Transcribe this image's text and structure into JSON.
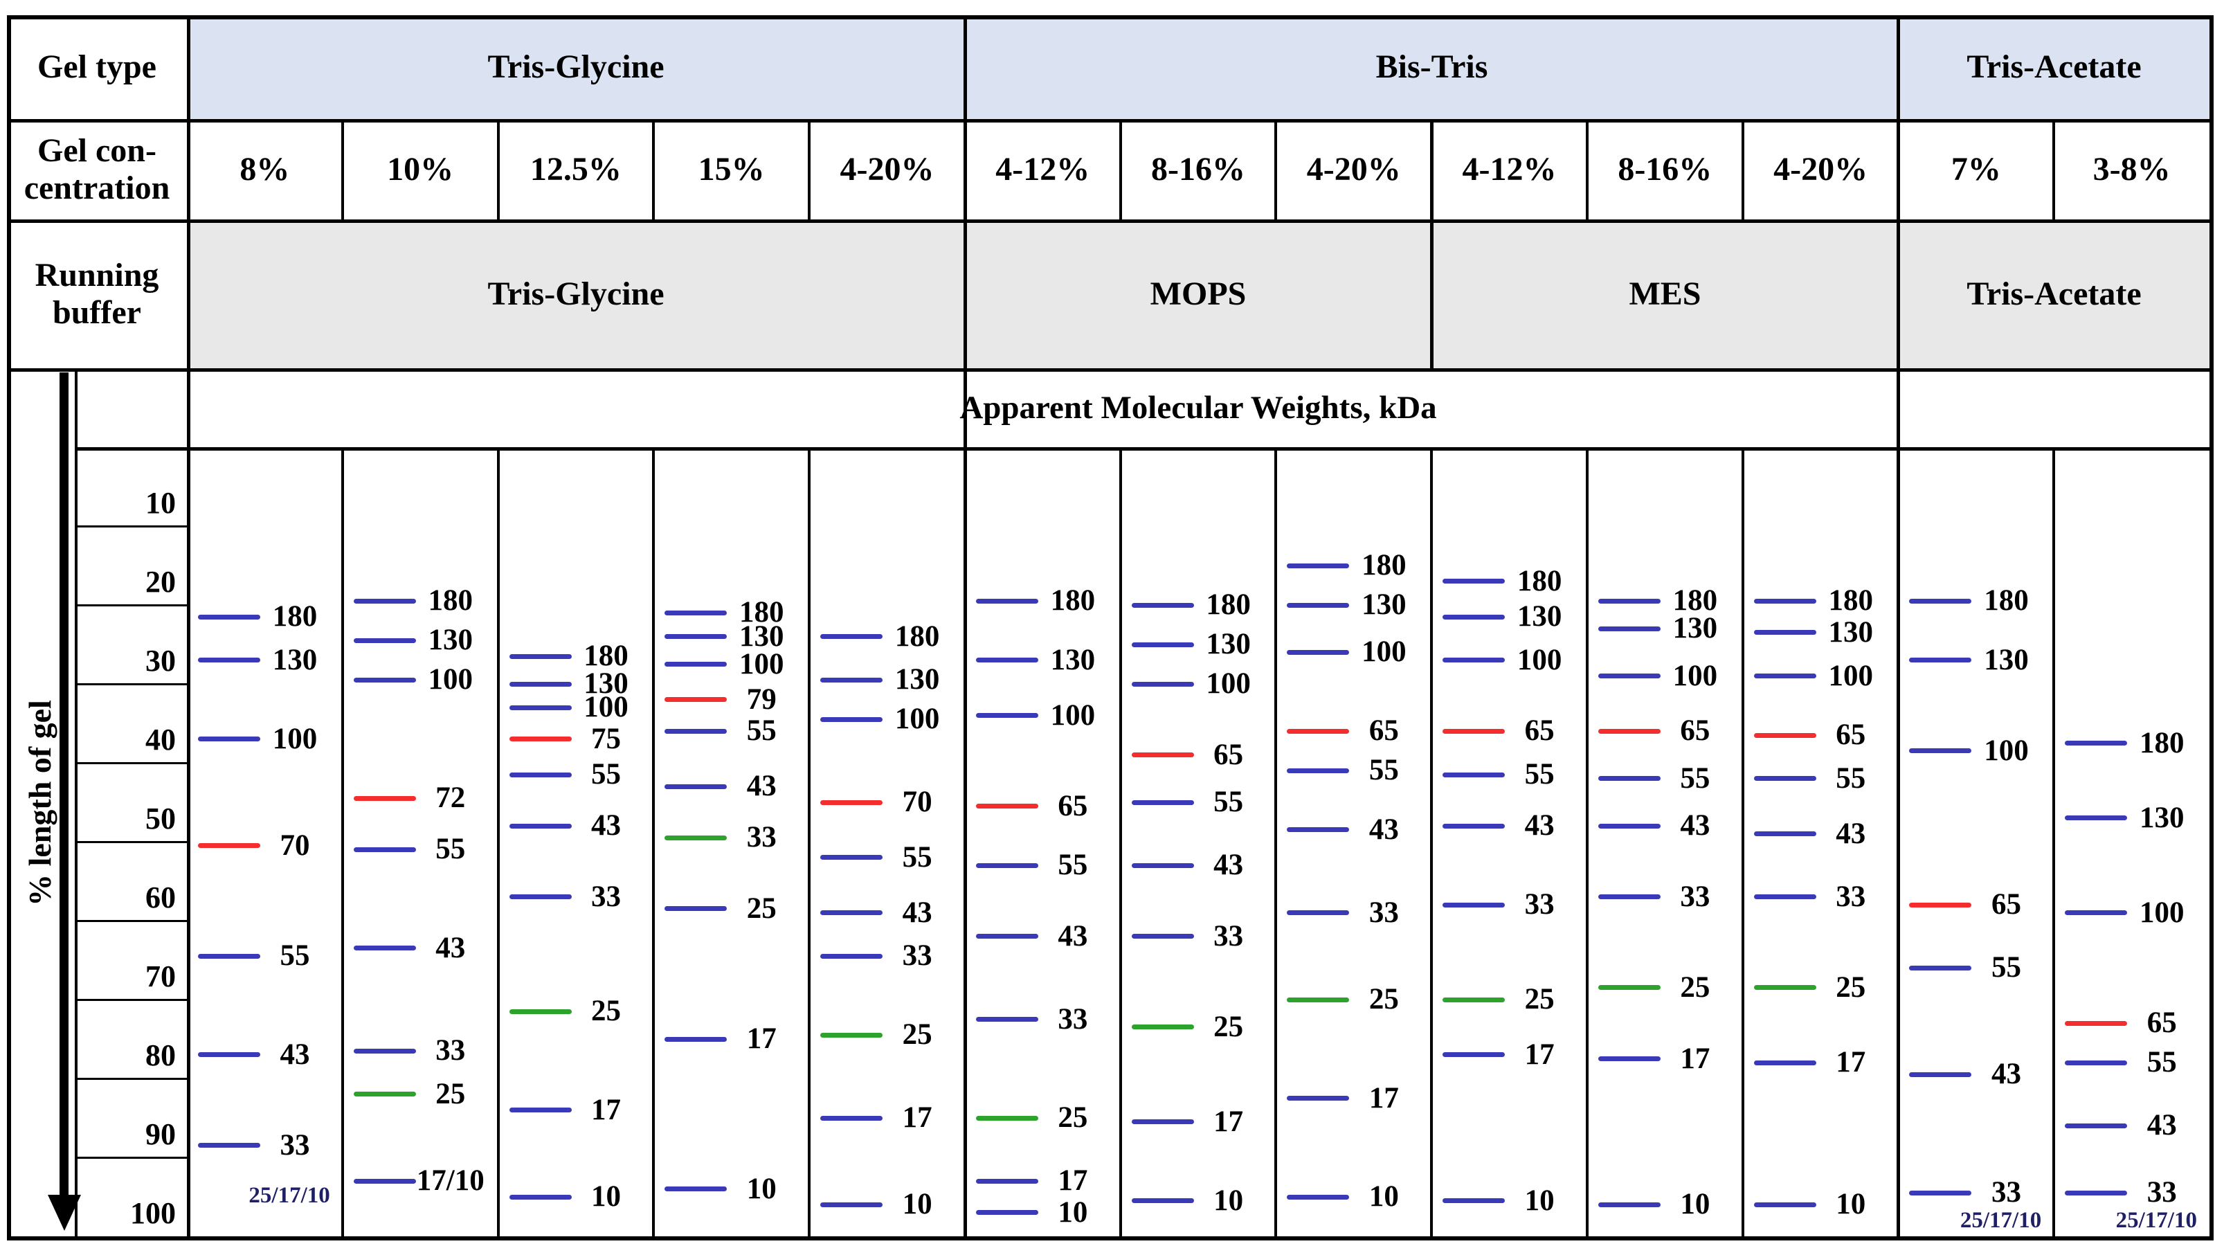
{
  "colors": {
    "band_blue": "#3a3ab8",
    "band_red": "#f42e2e",
    "band_green": "#2da32d",
    "gel_type_row_bg": "#dbe3f2",
    "running_buffer_row_bg": "#e8e8e8",
    "footnote_text": "#1f1f66",
    "border": "#000000"
  },
  "row_headers": {
    "gel_type": "Gel type",
    "gel_concentration_line1": "Gel con-",
    "gel_concentration_line2": "centration",
    "running_buffer_line1": "Running",
    "running_buffer_line2": "buffer"
  },
  "gel_type_sections": [
    {
      "label": "Tris-Glycine",
      "lane_span": 5
    },
    {
      "label": "Bis-Tris",
      "lane_span": 6
    },
    {
      "label": "Tris-Acetate",
      "lane_span": 2
    }
  ],
  "running_buffer_sections": [
    {
      "label": "Tris-Glycine",
      "lane_span": 5
    },
    {
      "label": "MOPS",
      "lane_span": 3
    },
    {
      "label": "MES",
      "lane_span": 3
    },
    {
      "label": "Tris-Acetate",
      "lane_span": 2
    }
  ],
  "mw_header": "Apparent Molecular Weights, kDa",
  "y_axis": {
    "label": "% length of gel",
    "ticks": [
      10,
      20,
      30,
      40,
      50,
      60,
      70,
      80,
      90,
      100
    ]
  },
  "chart_data": {
    "type": "table",
    "subtype": "gel-band-migration-chart",
    "ylabel": "% length of gel",
    "y_range": [
      0,
      100
    ],
    "value_unit": "kDa",
    "lanes": [
      {
        "gel_type": "Tris-Glycine",
        "concentration": "8%",
        "running_buffer": "Tris-Glycine",
        "bands": [
          {
            "kda": "180",
            "color": "blue",
            "position_pct": 21.5
          },
          {
            "kda": "130",
            "color": "blue",
            "position_pct": 27.0
          },
          {
            "kda": "100",
            "color": "blue",
            "position_pct": 37.0
          },
          {
            "kda": "70",
            "color": "red",
            "position_pct": 50.5
          },
          {
            "kda": "55",
            "color": "blue",
            "position_pct": 64.5
          },
          {
            "kda": "43",
            "color": "blue",
            "position_pct": 77.0
          },
          {
            "kda": "33",
            "color": "blue",
            "position_pct": 88.5
          }
        ],
        "footnote": {
          "text": "25/17/10",
          "position_pct": 95.0
        }
      },
      {
        "gel_type": "Tris-Glycine",
        "concentration": "10%",
        "running_buffer": "Tris-Glycine",
        "bands": [
          {
            "kda": "180",
            "color": "blue",
            "position_pct": 19.5
          },
          {
            "kda": "130",
            "color": "blue",
            "position_pct": 24.5
          },
          {
            "kda": "100",
            "color": "blue",
            "position_pct": 29.5
          },
          {
            "kda": "72",
            "color": "red",
            "position_pct": 44.5
          },
          {
            "kda": "55",
            "color": "blue",
            "position_pct": 51.0
          },
          {
            "kda": "43",
            "color": "blue",
            "position_pct": 63.5
          },
          {
            "kda": "33",
            "color": "blue",
            "position_pct": 76.5
          },
          {
            "kda": "25",
            "color": "green",
            "position_pct": 82.0
          },
          {
            "kda": "17/10",
            "color": "blue",
            "position_pct": 93.0
          }
        ],
        "footnote": null
      },
      {
        "gel_type": "Tris-Glycine",
        "concentration": "12.5%",
        "running_buffer": "Tris-Glycine",
        "bands": [
          {
            "kda": "180",
            "color": "blue",
            "position_pct": 26.5
          },
          {
            "kda": "130",
            "color": "blue",
            "position_pct": 30.0
          },
          {
            "kda": "100",
            "color": "blue",
            "position_pct": 33.0
          },
          {
            "kda": "75",
            "color": "red",
            "position_pct": 37.0
          },
          {
            "kda": "55",
            "color": "blue",
            "position_pct": 41.5
          },
          {
            "kda": "43",
            "color": "blue",
            "position_pct": 48.0
          },
          {
            "kda": "33",
            "color": "blue",
            "position_pct": 57.0
          },
          {
            "kda": "25",
            "color": "green",
            "position_pct": 71.5
          },
          {
            "kda": "17",
            "color": "blue",
            "position_pct": 84.0
          },
          {
            "kda": "10",
            "color": "blue",
            "position_pct": 95.0
          }
        ],
        "footnote": null
      },
      {
        "gel_type": "Tris-Glycine",
        "concentration": "15%",
        "running_buffer": "Tris-Glycine",
        "bands": [
          {
            "kda": "180",
            "color": "blue",
            "position_pct": 21.0
          },
          {
            "kda": "130",
            "color": "blue",
            "position_pct": 24.0
          },
          {
            "kda": "100",
            "color": "blue",
            "position_pct": 27.5
          },
          {
            "kda": "79",
            "color": "red",
            "position_pct": 32.0
          },
          {
            "kda": "55",
            "color": "blue",
            "position_pct": 36.0
          },
          {
            "kda": "43",
            "color": "blue",
            "position_pct": 43.0
          },
          {
            "kda": "33",
            "color": "green",
            "position_pct": 49.5
          },
          {
            "kda": "25",
            "color": "blue",
            "position_pct": 58.5
          },
          {
            "kda": "17",
            "color": "blue",
            "position_pct": 75.0
          },
          {
            "kda": "10",
            "color": "blue",
            "position_pct": 94.0
          }
        ],
        "footnote": null
      },
      {
        "gel_type": "Tris-Glycine",
        "concentration": "4-20%",
        "running_buffer": "Tris-Glycine",
        "bands": [
          {
            "kda": "180",
            "color": "blue",
            "position_pct": 24.0
          },
          {
            "kda": "130",
            "color": "blue",
            "position_pct": 29.5
          },
          {
            "kda": "100",
            "color": "blue",
            "position_pct": 34.5
          },
          {
            "kda": "70",
            "color": "red",
            "position_pct": 45.0
          },
          {
            "kda": "55",
            "color": "blue",
            "position_pct": 52.0
          },
          {
            "kda": "43",
            "color": "blue",
            "position_pct": 59.0
          },
          {
            "kda": "33",
            "color": "blue",
            "position_pct": 64.5
          },
          {
            "kda": "25",
            "color": "green",
            "position_pct": 74.5
          },
          {
            "kda": "17",
            "color": "blue",
            "position_pct": 85.0
          },
          {
            "kda": "10",
            "color": "blue",
            "position_pct": 96.0
          }
        ],
        "footnote": null
      },
      {
        "gel_type": "Bis-Tris",
        "concentration": "4-12%",
        "running_buffer": "MOPS",
        "bands": [
          {
            "kda": "180",
            "color": "blue",
            "position_pct": 19.5
          },
          {
            "kda": "130",
            "color": "blue",
            "position_pct": 27.0
          },
          {
            "kda": "100",
            "color": "blue",
            "position_pct": 34.0
          },
          {
            "kda": "65",
            "color": "red",
            "position_pct": 45.5
          },
          {
            "kda": "55",
            "color": "blue",
            "position_pct": 53.0
          },
          {
            "kda": "43",
            "color": "blue",
            "position_pct": 62.0
          },
          {
            "kda": "33",
            "color": "blue",
            "position_pct": 72.5
          },
          {
            "kda": "25",
            "color": "green",
            "position_pct": 85.0
          },
          {
            "kda": "17",
            "color": "blue",
            "position_pct": 93.0
          },
          {
            "kda": "10",
            "color": "blue",
            "position_pct": 97.0
          }
        ],
        "footnote": null
      },
      {
        "gel_type": "Bis-Tris",
        "concentration": "8-16%",
        "running_buffer": "MOPS",
        "bands": [
          {
            "kda": "180",
            "color": "blue",
            "position_pct": 20.0
          },
          {
            "kda": "130",
            "color": "blue",
            "position_pct": 25.0
          },
          {
            "kda": "100",
            "color": "blue",
            "position_pct": 30.0
          },
          {
            "kda": "65",
            "color": "red",
            "position_pct": 39.0
          },
          {
            "kda": "55",
            "color": "blue",
            "position_pct": 45.0
          },
          {
            "kda": "43",
            "color": "blue",
            "position_pct": 53.0
          },
          {
            "kda": "33",
            "color": "blue",
            "position_pct": 62.0
          },
          {
            "kda": "25",
            "color": "green",
            "position_pct": 73.5
          },
          {
            "kda": "17",
            "color": "blue",
            "position_pct": 85.5
          },
          {
            "kda": "10",
            "color": "blue",
            "position_pct": 95.5
          }
        ],
        "footnote": null
      },
      {
        "gel_type": "Bis-Tris",
        "concentration": "4-20%",
        "running_buffer": "MOPS",
        "bands": [
          {
            "kda": "180",
            "color": "blue",
            "position_pct": 15.0
          },
          {
            "kda": "130",
            "color": "blue",
            "position_pct": 20.0
          },
          {
            "kda": "100",
            "color": "blue",
            "position_pct": 26.0
          },
          {
            "kda": "65",
            "color": "red",
            "position_pct": 36.0
          },
          {
            "kda": "55",
            "color": "blue",
            "position_pct": 41.0
          },
          {
            "kda": "43",
            "color": "blue",
            "position_pct": 48.5
          },
          {
            "kda": "33",
            "color": "blue",
            "position_pct": 59.0
          },
          {
            "kda": "25",
            "color": "green",
            "position_pct": 70.0
          },
          {
            "kda": "17",
            "color": "blue",
            "position_pct": 82.5
          },
          {
            "kda": "10",
            "color": "blue",
            "position_pct": 95.0
          }
        ],
        "footnote": null
      },
      {
        "gel_type": "Bis-Tris",
        "concentration": "4-12%",
        "running_buffer": "MES",
        "bands": [
          {
            "kda": "180",
            "color": "blue",
            "position_pct": 17.0
          },
          {
            "kda": "130",
            "color": "blue",
            "position_pct": 21.5
          },
          {
            "kda": "100",
            "color": "blue",
            "position_pct": 27.0
          },
          {
            "kda": "65",
            "color": "red",
            "position_pct": 36.0
          },
          {
            "kda": "55",
            "color": "blue",
            "position_pct": 41.5
          },
          {
            "kda": "43",
            "color": "blue",
            "position_pct": 48.0
          },
          {
            "kda": "33",
            "color": "blue",
            "position_pct": 58.0
          },
          {
            "kda": "25",
            "color": "green",
            "position_pct": 70.0
          },
          {
            "kda": "17",
            "color": "blue",
            "position_pct": 77.0
          },
          {
            "kda": "10",
            "color": "blue",
            "position_pct": 95.5
          }
        ],
        "footnote": null
      },
      {
        "gel_type": "Bis-Tris",
        "concentration": "8-16%",
        "running_buffer": "MES",
        "bands": [
          {
            "kda": "180",
            "color": "blue",
            "position_pct": 19.5
          },
          {
            "kda": "130",
            "color": "blue",
            "position_pct": 23.0
          },
          {
            "kda": "100",
            "color": "blue",
            "position_pct": 29.0
          },
          {
            "kda": "65",
            "color": "red",
            "position_pct": 36.0
          },
          {
            "kda": "55",
            "color": "blue",
            "position_pct": 42.0
          },
          {
            "kda": "43",
            "color": "blue",
            "position_pct": 48.0
          },
          {
            "kda": "33",
            "color": "blue",
            "position_pct": 57.0
          },
          {
            "kda": "25",
            "color": "green",
            "position_pct": 68.5
          },
          {
            "kda": "17",
            "color": "blue",
            "position_pct": 77.5
          },
          {
            "kda": "10",
            "color": "blue",
            "position_pct": 96.0
          }
        ],
        "footnote": null
      },
      {
        "gel_type": "Bis-Tris",
        "concentration": "4-20%",
        "running_buffer": "MES",
        "bands": [
          {
            "kda": "180",
            "color": "blue",
            "position_pct": 19.5
          },
          {
            "kda": "130",
            "color": "blue",
            "position_pct": 23.5
          },
          {
            "kda": "100",
            "color": "blue",
            "position_pct": 29.0
          },
          {
            "kda": "65",
            "color": "red",
            "position_pct": 36.5
          },
          {
            "kda": "55",
            "color": "blue",
            "position_pct": 42.0
          },
          {
            "kda": "43",
            "color": "blue",
            "position_pct": 49.0
          },
          {
            "kda": "33",
            "color": "blue",
            "position_pct": 57.0
          },
          {
            "kda": "25",
            "color": "green",
            "position_pct": 68.5
          },
          {
            "kda": "17",
            "color": "blue",
            "position_pct": 78.0
          },
          {
            "kda": "10",
            "color": "blue",
            "position_pct": 96.0
          }
        ],
        "footnote": null
      },
      {
        "gel_type": "Tris-Acetate",
        "concentration": "7%",
        "running_buffer": "Tris-Acetate",
        "bands": [
          {
            "kda": "180",
            "color": "blue",
            "position_pct": 19.5
          },
          {
            "kda": "130",
            "color": "blue",
            "position_pct": 27.0
          },
          {
            "kda": "100",
            "color": "blue",
            "position_pct": 38.5
          },
          {
            "kda": "65",
            "color": "red",
            "position_pct": 58.0
          },
          {
            "kda": "55",
            "color": "blue",
            "position_pct": 66.0
          },
          {
            "kda": "43",
            "color": "blue",
            "position_pct": 79.5
          },
          {
            "kda": "33",
            "color": "blue",
            "position_pct": 94.5
          }
        ],
        "footnote": {
          "text": "25/17/10",
          "position_pct": 98.2
        }
      },
      {
        "gel_type": "Tris-Acetate",
        "concentration": "3-8%",
        "running_buffer": "Tris-Acetate",
        "bands": [
          {
            "kda": "180",
            "color": "blue",
            "position_pct": 37.5
          },
          {
            "kda": "130",
            "color": "blue",
            "position_pct": 47.0
          },
          {
            "kda": "100",
            "color": "blue",
            "position_pct": 59.0
          },
          {
            "kda": "65",
            "color": "red",
            "position_pct": 73.0
          },
          {
            "kda": "55",
            "color": "blue",
            "position_pct": 78.0
          },
          {
            "kda": "43",
            "color": "blue",
            "position_pct": 86.0
          },
          {
            "kda": "33",
            "color": "blue",
            "position_pct": 94.5
          }
        ],
        "footnote": {
          "text": "25/17/10",
          "position_pct": 98.2
        }
      }
    ]
  }
}
